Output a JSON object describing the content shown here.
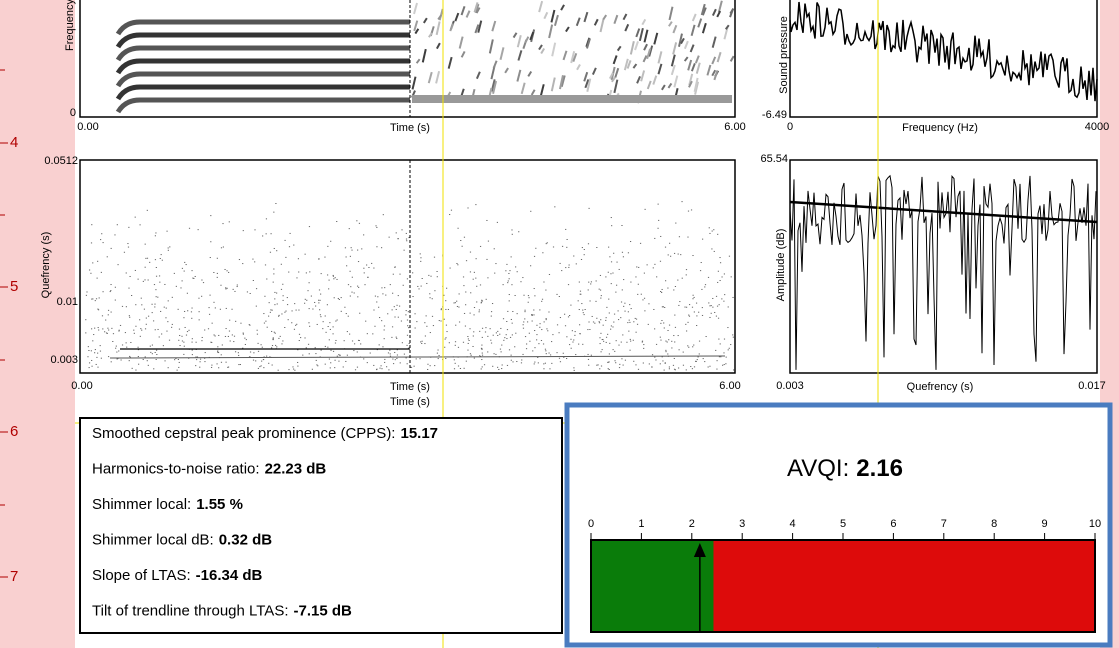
{
  "ruler": {
    "marks": [
      "4",
      "5",
      "6",
      "7"
    ]
  },
  "spectrogram": {
    "y_label": "Frequency",
    "y_bottom": "0",
    "x_start": "0.00",
    "x_label": "Time (s)",
    "x_end": "6.00"
  },
  "ltas": {
    "y_label": "Sound pressure",
    "y_bottom": "-6.49",
    "x_start": "0",
    "x_label": "Frequency (Hz)",
    "x_end": "4000"
  },
  "cepstrogram": {
    "y_top": "0.0512",
    "y_label": "Quefrency (s)",
    "y_mid": "0.01",
    "y_low": "0.003",
    "x_start": "0.00",
    "x_label": "Time (s)",
    "x_label_2": "Time (s)",
    "x_end": "6.00"
  },
  "cepstrum": {
    "y_top": "65.54",
    "y_label": "Amplitude (dB)",
    "x_start": "0.003",
    "x_label": "Quefrency (s)",
    "x_end": "0.017"
  },
  "measures": [
    {
      "label": "Smoothed cepstral peak prominence (CPPS):",
      "value": "15.17"
    },
    {
      "label": "Harmonics-to-noise ratio:",
      "value": "22.23 dB"
    },
    {
      "label": "Shimmer local:",
      "value": "1.55 %"
    },
    {
      "label": "Shimmer local dB:",
      "value": "0.32 dB"
    },
    {
      "label": "Slope of LTAS:",
      "value": "-16.34 dB"
    },
    {
      "label": "Tilt of trendline through LTAS:",
      "value": "-7.15 dB"
    }
  ],
  "avqi": {
    "label": "AVQI:",
    "value": 2.16,
    "cutoff": 2.43,
    "scale": {
      "xlim": [
        0,
        10
      ],
      "ticks": [
        0,
        1,
        2,
        3,
        4,
        5,
        6,
        7,
        8,
        9,
        10
      ]
    }
  }
}
